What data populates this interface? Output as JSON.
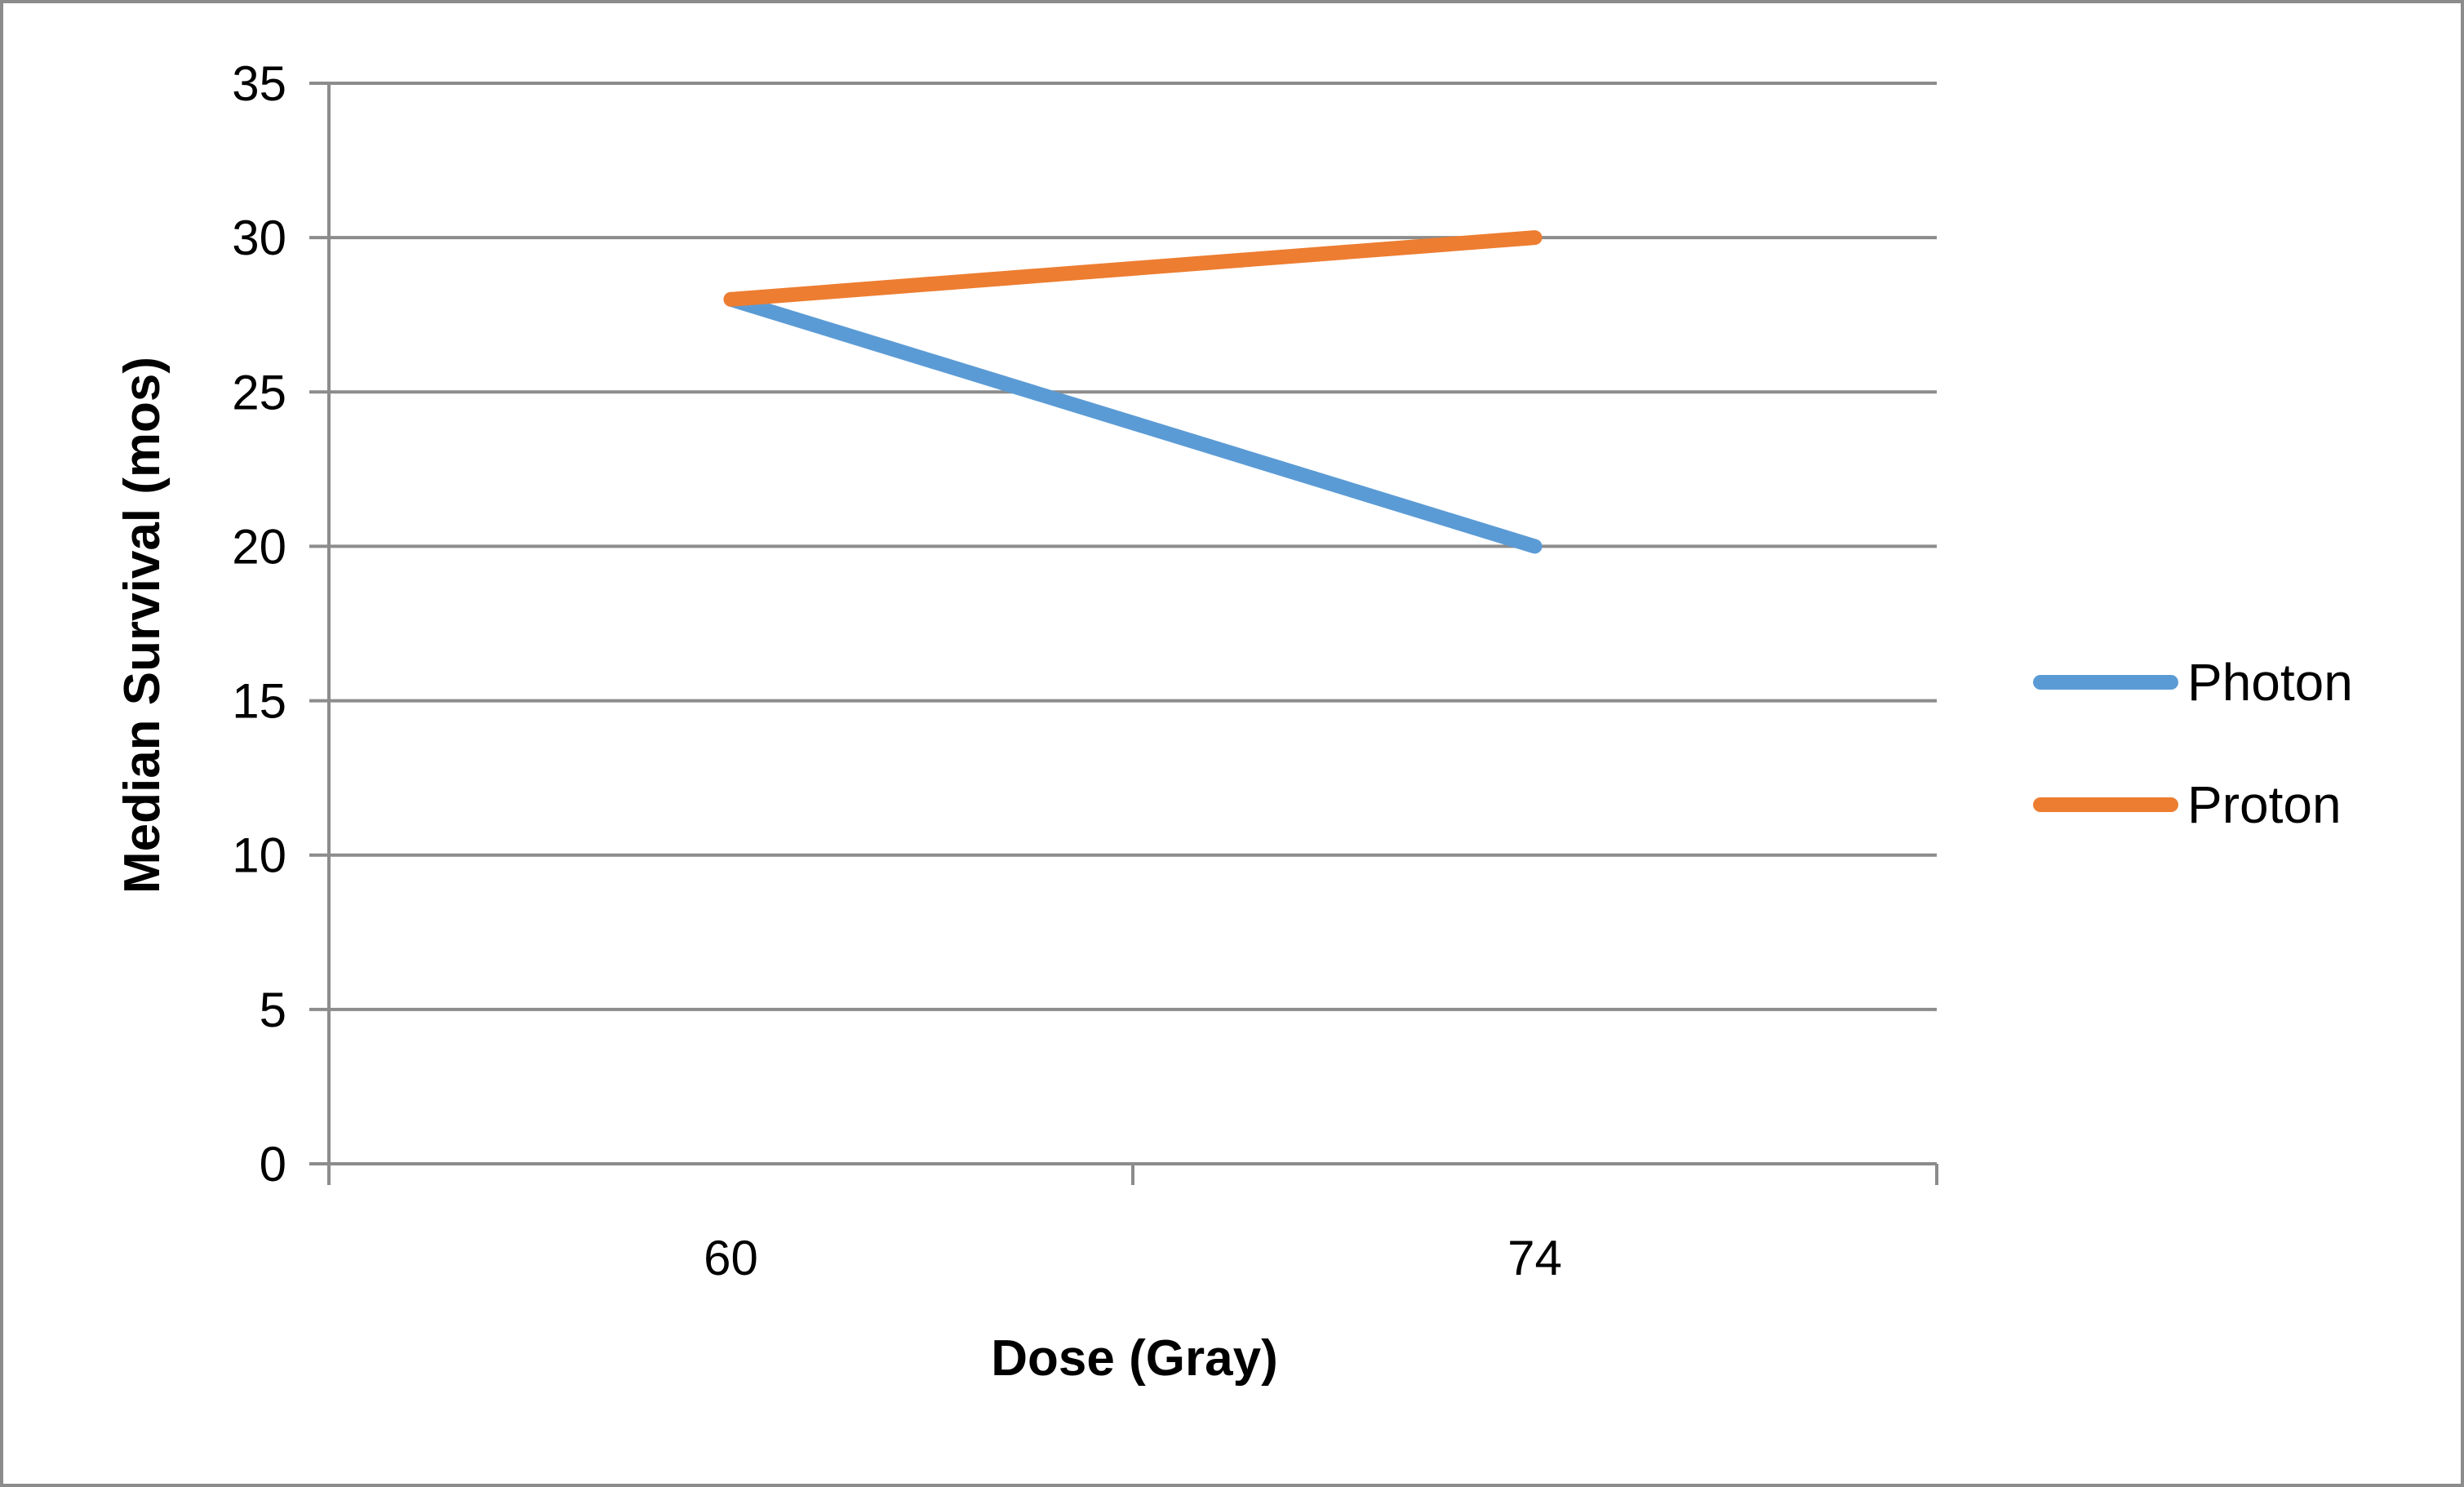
{
  "chart_data": {
    "type": "line",
    "categories": [
      "60",
      "74"
    ],
    "series": [
      {
        "name": "Photon",
        "values": [
          28,
          20
        ],
        "color": "#5B9BD5"
      },
      {
        "name": "Proton",
        "values": [
          28,
          30
        ],
        "color": "#ED7D31"
      }
    ],
    "xlabel": "Dose (Gray)",
    "ylabel": "Median Survival (mos)",
    "ylim": [
      0,
      35
    ],
    "yticks": [
      0,
      5,
      10,
      15,
      20,
      25,
      30,
      35
    ],
    "grid": true,
    "legend_position": "right",
    "colors": {
      "gridline": "#8C8C8C",
      "axis": "#8C8C8C",
      "border": "#8C8C8C"
    }
  }
}
